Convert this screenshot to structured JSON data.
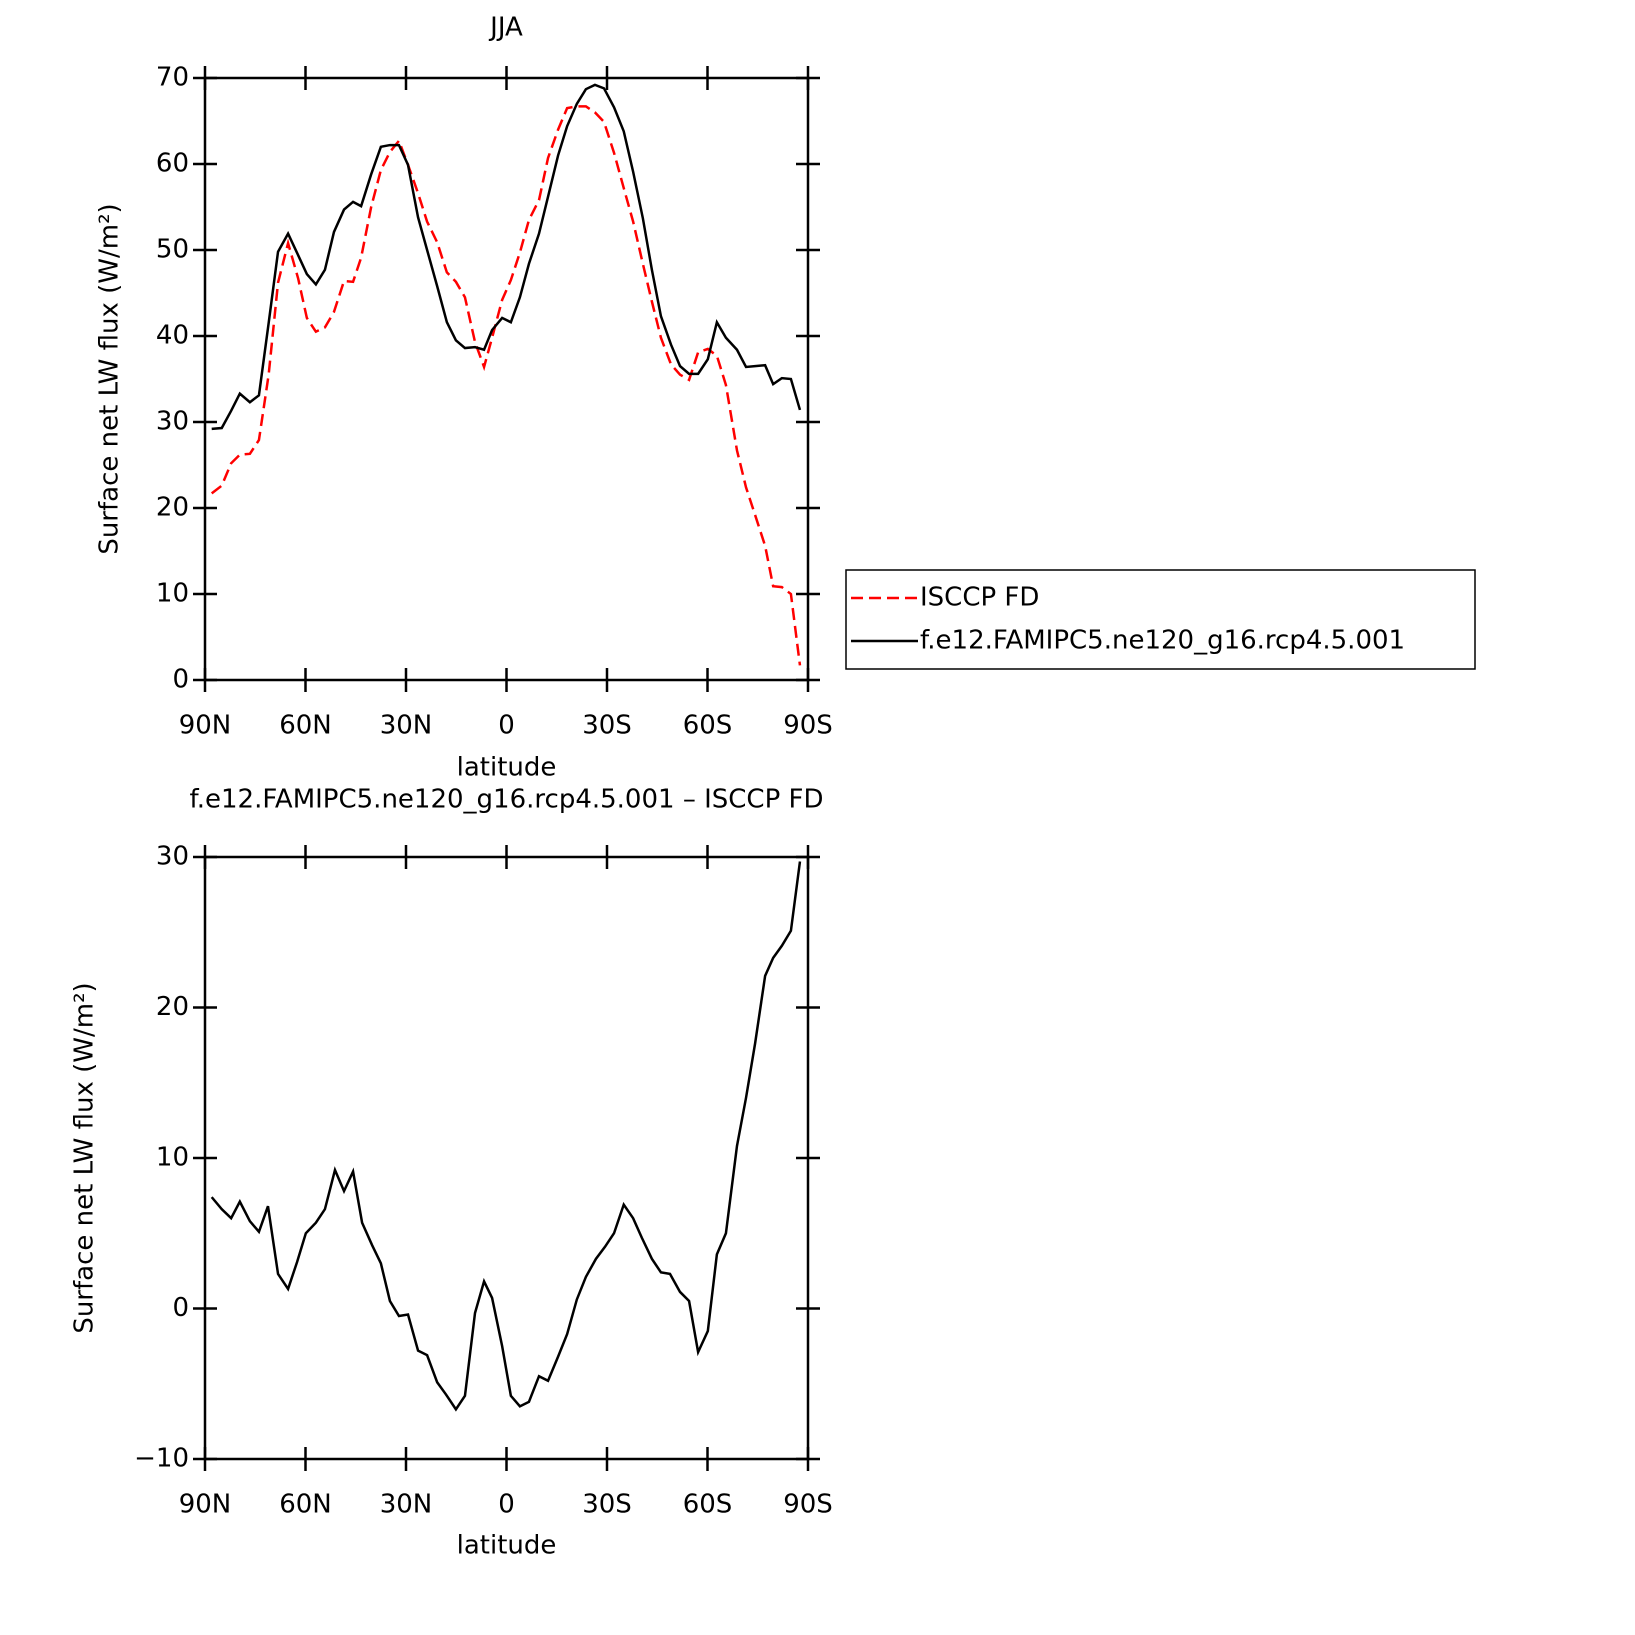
{
  "chart_data": [
    {
      "type": "line",
      "title": "JJA",
      "xlabel": "latitude",
      "ylabel": "Surface net LW flux (W/m²)",
      "x": [
        88,
        85,
        82.2,
        79.6,
        76.6,
        73.9,
        71,
        68.2,
        65.2,
        62.2,
        59.6,
        56.9,
        54.2,
        51.5,
        48.5,
        45.8,
        43.4,
        40.4,
        37.5,
        34.8,
        32.1,
        29.4,
        26.4,
        23.7,
        20.7,
        17.8,
        15.1,
        12.4,
        9.4,
        6.7,
        4.3,
        1.3,
        -1.3,
        -4,
        -6.7,
        -9.7,
        -12.4,
        -15.4,
        -18.1,
        -21,
        -23.7,
        -26.4,
        -29.1,
        -32.1,
        -35,
        -37.8,
        -40.7,
        -43.4,
        -46.1,
        -49.1,
        -51.8,
        -54.5,
        -57.2,
        -60.1,
        -62.8,
        -65.5,
        -68.8,
        -71.5,
        -74.2,
        -77.2,
        -79.6,
        -82.2,
        -84.9,
        -87.6
      ],
      "series": [
        {
          "name": "ISCCP FD",
          "color": "#ff0000",
          "dash": true,
          "values": [
            21.7,
            22.6,
            25.2,
            26.2,
            26.3,
            27.9,
            35.5,
            46.2,
            50.8,
            46.7,
            42.1,
            40.5,
            41,
            42.8,
            46.4,
            46.3,
            49.1,
            55,
            59.3,
            61.4,
            62.7,
            59.9,
            56.6,
            53.3,
            50.9,
            47.4,
            46.3,
            44.5,
            39.3,
            36.4,
            39.8,
            44.2,
            46.5,
            49.7,
            53.5,
            55.8,
            60.7,
            64,
            66.5,
            66.7,
            66.7,
            66,
            64.9,
            61.3,
            57.2,
            53.3,
            48.4,
            44,
            39.8,
            36.7,
            35.5,
            34.9,
            38.1,
            38.5,
            37.7,
            34.3,
            26.7,
            22.4,
            19.2,
            15.6,
            10.9,
            10.8,
            10,
            1.7
          ]
        },
        {
          "name": "f.e12.FAMIPC5.ne120_g16.rcp4.5.001",
          "color": "#000000",
          "dash": false,
          "values": [
            29.2,
            29.3,
            31.3,
            33.3,
            32.3,
            33.1,
            41.5,
            49.8,
            51.9,
            49.4,
            47.2,
            46.0,
            47.7,
            52.1,
            54.7,
            55.6,
            55.1,
            58.8,
            62.0,
            62.2,
            62.2,
            59.9,
            53.8,
            50,
            45.8,
            41.6,
            39.5,
            38.6,
            38.7,
            38.4,
            40.7,
            42.1,
            41.6,
            44.5,
            48.4,
            51.9,
            56.2,
            61,
            64.4,
            67,
            68.7,
            69.2,
            68.8,
            66.6,
            63.8,
            59.1,
            53.7,
            47.7,
            42.3,
            39,
            36.5,
            35.6,
            35.6,
            37.3,
            41.6,
            39.8,
            38.4,
            36.4,
            36.5,
            36.6,
            34.4,
            35.1,
            35,
            31.4
          ]
        }
      ],
      "xlim": [
        90,
        -90
      ],
      "xticks": [
        {
          "value": 90,
          "label": "90N"
        },
        {
          "value": 60,
          "label": "60N"
        },
        {
          "value": 30,
          "label": "30N"
        },
        0,
        {
          "value": -30,
          "label": "30S"
        },
        {
          "value": -60,
          "label": "60S"
        },
        {
          "value": -90,
          "label": "90S"
        }
      ],
      "ylim": [
        0,
        70
      ],
      "yticks": [
        0,
        10,
        20,
        30,
        40,
        50,
        60,
        70
      ],
      "legend": "right"
    },
    {
      "type": "line",
      "title": "f.e12.FAMIPC5.ne120_g16.rcp4.5.001 - ISCCP FD",
      "xlabel": "latitude",
      "ylabel": "Surface net LW flux (W/m²)",
      "x": [
        88,
        85,
        82.2,
        79.6,
        76.6,
        73.9,
        71.2,
        68.2,
        65.2,
        62.5,
        59.9,
        56.9,
        54.2,
        51.2,
        48.5,
        45.8,
        43.1,
        40.1,
        37.5,
        34.8,
        32.1,
        29.4,
        26.4,
        23.7,
        20.7,
        18.1,
        15.1,
        12.4,
        9.4,
        6.7,
        4.3,
        1.3,
        -1.3,
        -4,
        -6.7,
        -9.7,
        -12.4,
        -15.4,
        -18.1,
        -21,
        -23.7,
        -26.7,
        -29.4,
        -32.1,
        -35,
        -37.8,
        -40.4,
        -43.4,
        -46.1,
        -48.8,
        -51.8,
        -54.5,
        -57.2,
        -60.1,
        -62.8,
        -65.5,
        -68.8,
        -71.5,
        -74.2,
        -77.2,
        -79.6,
        -82.2,
        -84.9,
        -87.6
      ],
      "values": [
        7.4,
        6.6,
        6.0,
        7.1,
        5.8,
        5.1,
        6.8,
        2.3,
        1.3,
        3.1,
        5.0,
        5.7,
        6.6,
        9.2,
        7.8,
        9.1,
        5.7,
        4.2,
        3.0,
        0.5,
        -0.5,
        -0.4,
        -2.8,
        -3.1,
        -4.9,
        -5.7,
        -6.7,
        -5.8,
        -0.3,
        1.8,
        0.7,
        -2.5,
        -5.8,
        -6.5,
        -6.2,
        -4.5,
        -4.8,
        -3.2,
        -1.7,
        0.6,
        2.1,
        3.3,
        4.1,
        5.0,
        6.9,
        6.0,
        4.7,
        3.3,
        2.4,
        2.3,
        1.1,
        0.5,
        -2.9,
        -1.5,
        3.6,
        5.0,
        10.8,
        14,
        17.6,
        22.1,
        23.3,
        24.1,
        25.1,
        29.7
      ],
      "color": "#000000",
      "xlim": [
        90,
        -90
      ],
      "xticks": [
        {
          "value": 90,
          "label": "90N"
        },
        {
          "value": 60,
          "label": "60N"
        },
        {
          "value": 30,
          "label": "30N"
        },
        0,
        {
          "value": -30,
          "label": "30S"
        },
        {
          "value": -60,
          "label": "60S"
        },
        {
          "value": -90,
          "label": "90S"
        }
      ],
      "ylim": [
        -10,
        30
      ],
      "yticks": [
        -10,
        0,
        10,
        20,
        30
      ]
    }
  ]
}
